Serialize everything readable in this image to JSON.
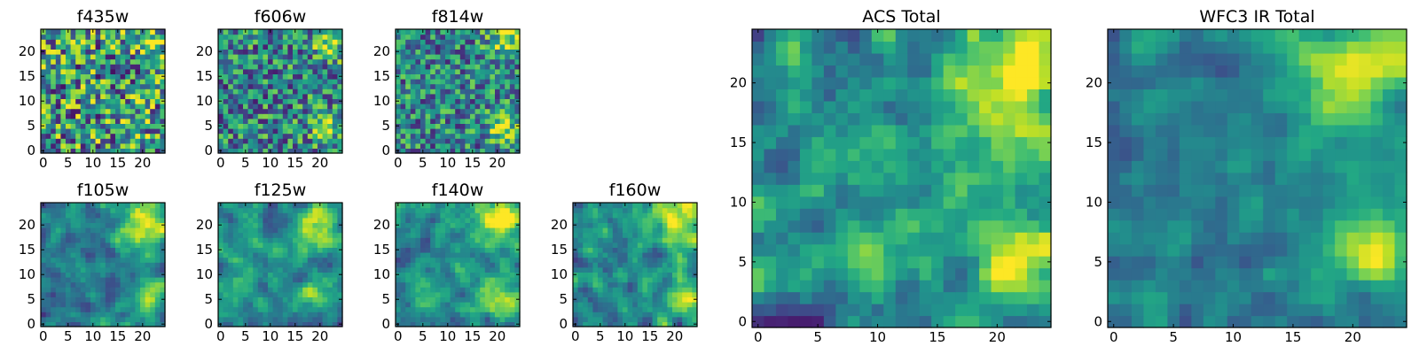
{
  "figure": {
    "background": "#ffffff",
    "colormap": "viridis"
  },
  "chart_data": [
    {
      "type": "heatmap",
      "title": "f435w",
      "grid_size": 25,
      "xticks": [
        "0",
        "5",
        "10",
        "15",
        "20"
      ],
      "yticks": [
        "0",
        "5",
        "10",
        "15",
        "20"
      ],
      "xlim": [
        0,
        24
      ],
      "ylim": [
        0,
        24
      ],
      "legend": "none",
      "noise": 0.95,
      "base": 0.52,
      "blobs": [
        [
          22,
          22,
          2.5,
          0.25
        ],
        [
          19,
          5,
          2,
          0.15
        ]
      ],
      "seed": 11
    },
    {
      "type": "heatmap",
      "title": "f606w",
      "grid_size": 25,
      "xticks": [
        "0",
        "5",
        "10",
        "15",
        "20"
      ],
      "yticks": [
        "0",
        "5",
        "10",
        "15",
        "20"
      ],
      "xlim": [
        0,
        24
      ],
      "ylim": [
        0,
        24
      ],
      "legend": "none",
      "noise": 0.75,
      "base": 0.45,
      "blobs": [
        [
          21,
          5,
          2,
          0.45
        ],
        [
          22,
          22,
          2.5,
          0.35
        ]
      ],
      "seed": 23
    },
    {
      "type": "heatmap",
      "title": "f814w",
      "grid_size": 25,
      "xticks": [
        "0",
        "5",
        "10",
        "15",
        "20"
      ],
      "yticks": [
        "0",
        "5",
        "10",
        "15",
        "20"
      ],
      "xlim": [
        0,
        24
      ],
      "ylim": [
        0,
        24
      ],
      "legend": "none",
      "noise": 0.7,
      "base": 0.45,
      "blobs": [
        [
          21,
          5,
          2,
          0.5
        ],
        [
          22,
          22,
          2.5,
          0.4
        ]
      ],
      "seed": 37
    },
    {
      "type": "heatmap",
      "title": "f105w",
      "grid_size": 25,
      "xticks": [
        "0",
        "5",
        "10",
        "15",
        "20"
      ],
      "yticks": [
        "0",
        "5",
        "10",
        "15",
        "20"
      ],
      "xlim": [
        0,
        24
      ],
      "ylim": [
        0,
        24
      ],
      "legend": "none",
      "noise": 0.45,
      "base": 0.42,
      "blobs": [
        [
          20,
          20,
          3.5,
          0.5
        ],
        [
          21,
          6,
          2.2,
          0.45
        ]
      ],
      "seed": 41
    },
    {
      "type": "heatmap",
      "title": "f125w",
      "grid_size": 25,
      "xticks": [
        "0",
        "5",
        "10",
        "15",
        "20"
      ],
      "yticks": [
        "0",
        "5",
        "10",
        "15",
        "20"
      ],
      "xlim": [
        0,
        24
      ],
      "ylim": [
        0,
        24
      ],
      "legend": "none",
      "noise": 0.45,
      "base": 0.48,
      "blobs": [
        [
          20,
          20,
          3.5,
          0.45
        ],
        [
          21,
          6,
          2.2,
          0.35
        ]
      ],
      "seed": 53
    },
    {
      "type": "heatmap",
      "title": "f140w",
      "grid_size": 25,
      "xticks": [
        "0",
        "5",
        "10",
        "15",
        "20"
      ],
      "yticks": [
        "0",
        "5",
        "10",
        "15",
        "20"
      ],
      "xlim": [
        0,
        24
      ],
      "ylim": [
        0,
        24
      ],
      "legend": "none",
      "noise": 0.45,
      "base": 0.5,
      "blobs": [
        [
          21,
          21,
          3.5,
          0.5
        ],
        [
          21,
          5,
          2.5,
          0.45
        ]
      ],
      "seed": 67
    },
    {
      "type": "heatmap",
      "title": "f160w",
      "grid_size": 25,
      "xticks": [
        "0",
        "5",
        "10",
        "15",
        "20"
      ],
      "yticks": [
        "0",
        "5",
        "10",
        "15",
        "20"
      ],
      "xlim": [
        0,
        24
      ],
      "ylim": [
        0,
        24
      ],
      "legend": "none",
      "noise": 0.5,
      "base": 0.5,
      "blobs": [
        [
          21,
          21,
          3.5,
          0.45
        ],
        [
          21,
          5,
          2.5,
          0.35
        ]
      ],
      "seed": 79
    },
    {
      "type": "heatmap",
      "title": "ACS Total",
      "grid_size": 25,
      "xticks": [
        "0",
        "5",
        "10",
        "15",
        "20"
      ],
      "yticks": [
        "0",
        "5",
        "10",
        "15",
        "20"
      ],
      "xlim": [
        0,
        24
      ],
      "ylim": [
        0,
        24
      ],
      "legend": "none",
      "noise": 0.5,
      "base": 0.5,
      "blobs": [
        [
          21,
          5,
          2.2,
          0.55
        ],
        [
          22,
          22,
          3,
          0.45
        ],
        [
          19,
          18,
          3,
          0.2
        ]
      ],
      "seed": 97
    },
    {
      "type": "heatmap",
      "title": "WFC3 IR Total",
      "grid_size": 25,
      "xticks": [
        "0",
        "5",
        "10",
        "15",
        "20"
      ],
      "yticks": [
        "0",
        "5",
        "10",
        "15",
        "20"
      ],
      "xlim": [
        0,
        24
      ],
      "ylim": [
        0,
        24
      ],
      "legend": "none",
      "noise": 0.35,
      "base": 0.42,
      "blobs": [
        [
          20,
          21,
          3.5,
          0.55
        ],
        [
          21,
          6,
          2.5,
          0.5
        ]
      ],
      "seed": 113
    }
  ]
}
